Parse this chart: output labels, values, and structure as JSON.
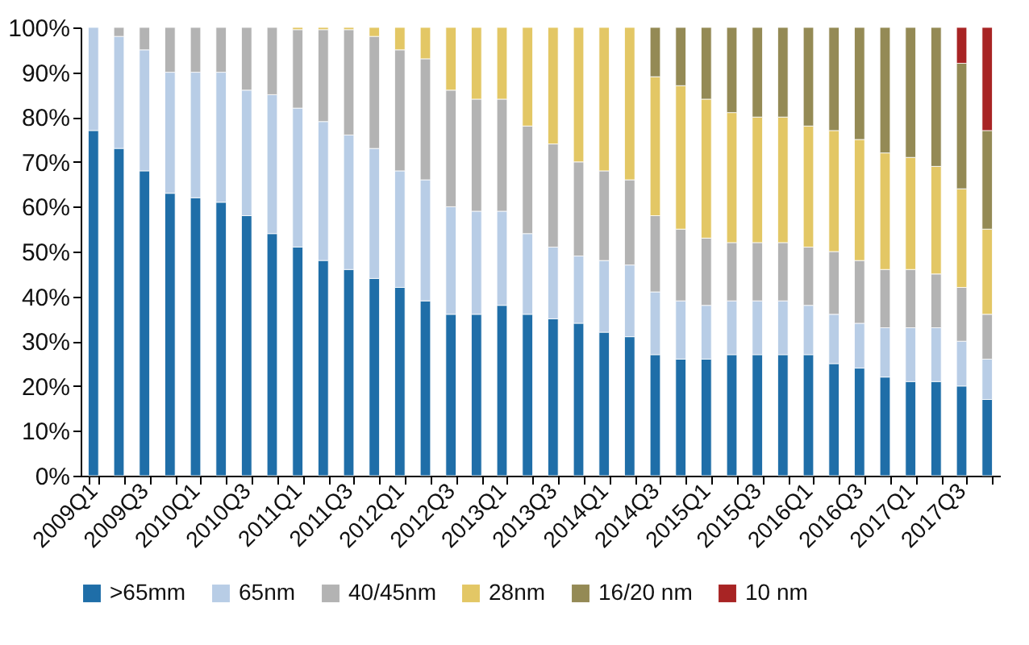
{
  "chart_data": {
    "type": "bar",
    "stacked": true,
    "categories": [
      "2009Q1",
      null,
      "2009Q3",
      null,
      "2010Q1",
      null,
      "2010Q3",
      null,
      "2011Q1",
      null,
      "2011Q3",
      null,
      "2012Q1",
      null,
      "2012Q3",
      null,
      "2013Q1",
      null,
      "2013Q3",
      null,
      "2014Q1",
      null,
      "2014Q3",
      null,
      "2015Q1",
      null,
      "2015Q3",
      null,
      "2016Q1",
      null,
      "2016Q3",
      null,
      "2017Q1",
      null,
      "2017Q3",
      null
    ],
    "series": [
      {
        "name": ">65mm",
        "color": "#1f6ea8",
        "values": [
          77,
          73,
          68,
          63,
          62,
          61,
          58,
          54,
          51,
          48,
          46,
          44,
          42,
          39,
          36,
          36,
          38,
          36,
          35,
          34,
          32,
          31,
          27,
          26,
          26,
          27,
          27,
          27,
          27,
          25,
          24,
          22,
          21,
          21,
          20,
          17
        ]
      },
      {
        "name": "65nm",
        "color": "#b8cde6",
        "values": [
          23,
          25,
          27,
          27,
          28,
          29,
          28,
          31,
          31,
          31,
          30,
          29,
          26,
          27,
          24,
          23,
          21,
          18,
          16,
          15,
          16,
          16,
          14,
          13,
          12,
          12,
          12,
          12,
          11,
          11,
          10,
          11,
          12,
          12,
          10,
          9
        ]
      },
      {
        "name": "40/45nm",
        "color": "#b3b3b3",
        "values": [
          0,
          2,
          5,
          10,
          10,
          10,
          14,
          15,
          17.5,
          20.5,
          23.5,
          25,
          27,
          27,
          26,
          25,
          25,
          24,
          23,
          21,
          20,
          19,
          17,
          16,
          15,
          13,
          13,
          13,
          13,
          14,
          14,
          13,
          13,
          12,
          12,
          10
        ]
      },
      {
        "name": "28nm",
        "color": "#e3c765",
        "values": [
          0,
          0,
          0,
          0,
          0,
          0,
          0,
          0,
          0.5,
          0.5,
          0.5,
          2,
          5,
          7,
          14,
          16,
          16,
          22,
          26,
          30,
          32,
          34,
          31,
          32,
          31,
          29,
          28,
          28,
          27,
          27,
          27,
          26,
          25,
          24,
          22,
          19
        ]
      },
      {
        "name": "16/20 nm",
        "color": "#948a55",
        "values": [
          0,
          0,
          0,
          0,
          0,
          0,
          0,
          0,
          0,
          0,
          0,
          0,
          0,
          0,
          0,
          0,
          0,
          0,
          0,
          0,
          0,
          0,
          11,
          13,
          16,
          19,
          20,
          20,
          22,
          23,
          25,
          28,
          29,
          31,
          28,
          22
        ]
      },
      {
        "name": "10 nm",
        "color": "#a82424",
        "values": [
          0,
          0,
          0,
          0,
          0,
          0,
          0,
          0,
          0,
          0,
          0,
          0,
          0,
          0,
          0,
          0,
          0,
          0,
          0,
          0,
          0,
          0,
          0,
          0,
          0,
          0,
          0,
          0,
          0,
          0,
          0,
          0,
          0,
          0,
          8,
          23
        ]
      }
    ],
    "ylim": [
      0,
      100
    ],
    "yticks": [
      {
        "value": 0,
        "label": "0%"
      },
      {
        "value": 10,
        "label": "10%"
      },
      {
        "value": 20,
        "label": "20%"
      },
      {
        "value": 30,
        "label": "30%"
      },
      {
        "value": 40,
        "label": "40%"
      },
      {
        "value": 50,
        "label": "50%"
      },
      {
        "value": 60,
        "label": "60%"
      },
      {
        "value": 70,
        "label": "70%"
      },
      {
        "value": 80,
        "label": "80%"
      },
      {
        "value": 90,
        "label": "90%"
      },
      {
        "value": 100,
        "label": "100%"
      }
    ],
    "grid": false,
    "legend": "bottom"
  }
}
